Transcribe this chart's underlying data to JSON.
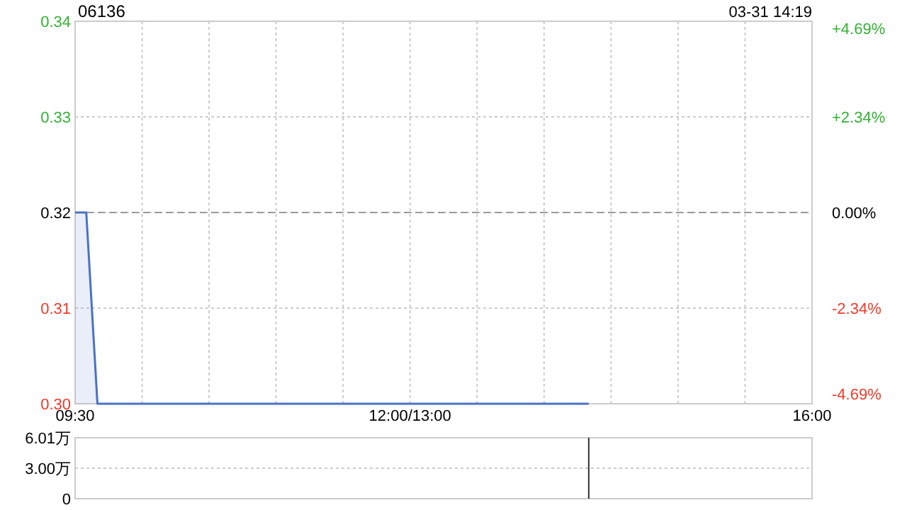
{
  "chart_data": [
    {
      "type": "area",
      "title": "06136",
      "annotations": [
        "03-31 14:19"
      ],
      "categories": [
        "09:30",
        null,
        null,
        null,
        null,
        null,
        null,
        null,
        null,
        null,
        null,
        null,
        null,
        null,
        null,
        null,
        null,
        null,
        null,
        null,
        null,
        null,
        null,
        null,
        null,
        null,
        null,
        null,
        null,
        null,
        "12:00/13:00",
        null,
        null,
        null,
        null,
        null,
        null,
        null,
        null,
        null,
        null,
        null,
        null,
        null,
        null,
        null,
        null,
        null,
        null,
        null,
        null,
        null,
        null,
        null,
        null,
        null,
        null,
        null,
        null,
        null,
        null,
        null,
        null,
        null,
        null,
        null,
        "16:00"
      ],
      "values": [
        0.32,
        0.32,
        0.3,
        0.3,
        0.3,
        0.3,
        0.3,
        0.3,
        0.3,
        0.3,
        0.3,
        0.3,
        0.3,
        0.3,
        0.3,
        0.3,
        0.3,
        0.3,
        0.3,
        0.3,
        0.3,
        0.3,
        0.3,
        0.3,
        0.3,
        0.3,
        0.3,
        0.3,
        0.3,
        0.3,
        0.3,
        0.3,
        0.3,
        0.3,
        0.3,
        0.3,
        0.3,
        0.3,
        0.3,
        0.3,
        0.3,
        0.3,
        0.3,
        0.3,
        0.3,
        0.3,
        0.3,
        null,
        null,
        null,
        null,
        null,
        null,
        null,
        null,
        null,
        null,
        null,
        null,
        null,
        null,
        null,
        null,
        null,
        null,
        null,
        null
      ],
      "color": "#4a72c4",
      "ylim": [
        0.3,
        0.34
      ],
      "yticks": [
        0.34,
        0.33,
        0.32,
        0.31,
        {
          "value": 0.3,
          "label": "0.30"
        }
      ],
      "y2lim": [
        -4.69,
        4.69
      ],
      "y2ticks": [
        {
          "value": 4.69,
          "label": "+4.69%"
        },
        {
          "value": 2.34,
          "label": "+2.34%"
        },
        {
          "value": 0,
          "label": "0.00%"
        },
        {
          "value": -2.34,
          "label": "-2.34%"
        },
        {
          "value": -4.69,
          "label": "-4.69%"
        }
      ],
      "ref_lines": [
        {
          "axis": "y",
          "value": 0.32,
          "line_style": "dashed",
          "color": "#999999"
        }
      ],
      "grid": true
    },
    {
      "type": "bar",
      "categories": [
        null,
        null,
        null,
        null,
        null,
        null,
        null,
        null,
        null,
        null,
        null,
        null,
        null,
        null,
        null,
        null,
        null,
        null,
        null,
        null,
        null,
        null,
        null,
        null,
        null,
        null,
        null,
        null,
        null,
        null,
        null,
        null,
        null,
        null,
        null,
        null,
        null,
        null,
        null,
        null,
        null,
        null,
        null,
        null,
        null,
        null,
        null,
        null,
        null,
        null,
        null,
        null,
        null,
        null,
        null,
        null,
        null,
        null,
        null,
        null,
        null,
        null,
        null,
        null,
        null,
        null,
        null
      ],
      "values": [
        null,
        null,
        null,
        null,
        null,
        null,
        null,
        null,
        null,
        null,
        null,
        null,
        null,
        null,
        null,
        null,
        null,
        null,
        null,
        null,
        null,
        null,
        null,
        null,
        null,
        null,
        null,
        null,
        null,
        null,
        null,
        null,
        null,
        null,
        null,
        null,
        null,
        null,
        null,
        null,
        null,
        null,
        null,
        null,
        null,
        null,
        6.01,
        null,
        null,
        null,
        null,
        null,
        null,
        null,
        null,
        null,
        null,
        null,
        null,
        null,
        null,
        null,
        null,
        null,
        null,
        null,
        null
      ],
      "color": "#333333",
      "ylim": [
        0,
        6.01
      ],
      "yticks": [
        {
          "value": 0,
          "label": "0"
        },
        {
          "value": 3,
          "label": "3.00万"
        },
        {
          "value": 6.01,
          "label": "6.01万"
        }
      ],
      "grid": "y",
      "tick_labels": "y"
    }
  ]
}
